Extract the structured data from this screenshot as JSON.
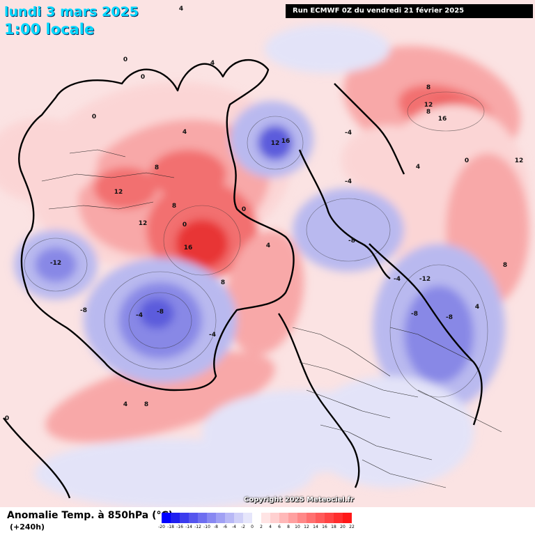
{
  "header": {
    "date_title": "lundi 3 mars 2025",
    "local_time": "1:00 locale",
    "run_info": "Run ECMWF 0Z du vendredi 21 février 2025"
  },
  "legend": {
    "title": "Anomalie Temp. à 850hPa (°C)",
    "subtitle": "(+240h)",
    "ticks": [
      "-20",
      "-18",
      "-16",
      "-14",
      "-12",
      "-10",
      "-8",
      "-6",
      "-4",
      "-2",
      "0",
      "2",
      "4",
      "6",
      "8",
      "10",
      "12",
      "14",
      "16",
      "18",
      "20",
      "22"
    ],
    "colors": [
      "#0000ff",
      "#2020f0",
      "#3c3cee",
      "#5555ee",
      "#6e6ef0",
      "#8888f2",
      "#a0a0f4",
      "#b8b8f6",
      "#d0d0f8",
      "#e6e6fb",
      "#ffffff",
      "#ffe4e4",
      "#ffd0d0",
      "#ffb8b8",
      "#ffa0a0",
      "#ff8888",
      "#ff7070",
      "#ff5a5a",
      "#ff4444",
      "#ff2e2e",
      "#ff1818"
    ]
  },
  "copyright": "Copyright 2025 Meteociel.fr",
  "contour_labels": [
    "4",
    "0",
    "0",
    "4",
    "4",
    "8",
    "12",
    "16",
    "12",
    "8",
    "0",
    "-4",
    "-8",
    "-12",
    "-8",
    "8",
    "12",
    "16",
    "4",
    "0",
    "-4",
    "-8",
    "-12",
    "-8",
    "-4",
    "8",
    "12",
    "16",
    "8",
    "4",
    "0",
    "-8",
    "-4",
    "12",
    "8",
    "4",
    "0",
    "-4",
    "8",
    "4",
    "0"
  ],
  "map": {
    "colors": {
      "warm_light": "#fbd5d5",
      "warm_mid": "#f8a8a8",
      "warm_strong": "#f27070",
      "warm_core": "#e83434",
      "cool_light": "#e3e3f8",
      "cool_mid": "#b9b9ef",
      "cool_strong": "#8888e6",
      "cool_core": "#5c5cdc",
      "coast": "#000000"
    }
  }
}
